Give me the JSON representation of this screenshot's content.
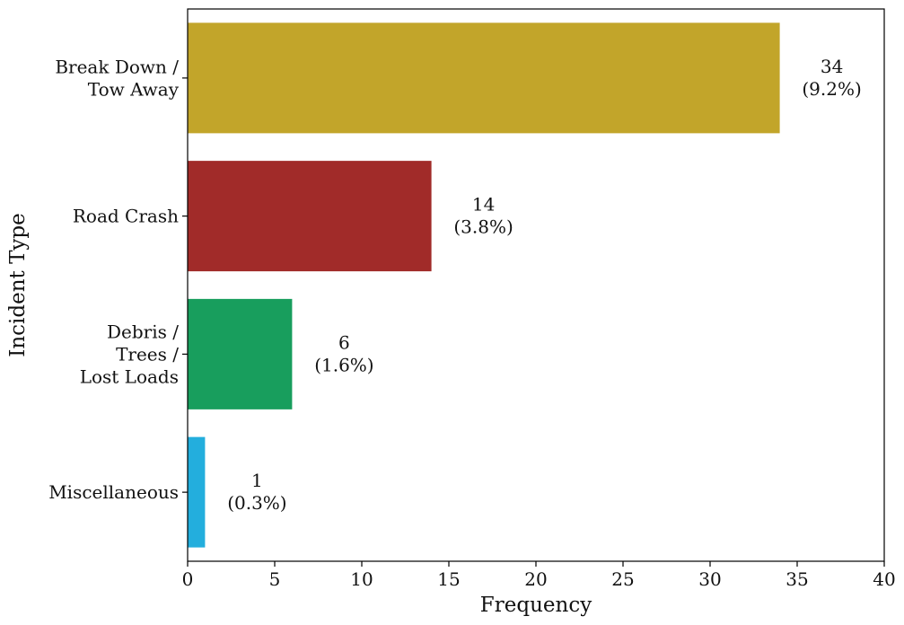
{
  "chart_data": {
    "type": "bar",
    "orientation": "horizontal",
    "xlabel": "Frequency",
    "ylabel": "Incident Type",
    "xlim": [
      0,
      40
    ],
    "xticks": [
      0,
      5,
      10,
      15,
      20,
      25,
      30,
      35,
      40
    ],
    "grid": false,
    "categories": [
      [
        "Break Down /",
        "Tow Away"
      ],
      [
        "Road Crash"
      ],
      [
        "Debris /",
        "Trees /",
        "Lost Loads"
      ],
      [
        "Miscellaneous"
      ]
    ],
    "values": [
      34,
      14,
      6,
      1
    ],
    "percent_labels": [
      "(9.2%)",
      "(3.8%)",
      "(1.6%)",
      "(0.3%)"
    ],
    "colors": [
      "#C2A52A",
      "#A12B29",
      "#189E5D",
      "#23AEDD"
    ]
  }
}
